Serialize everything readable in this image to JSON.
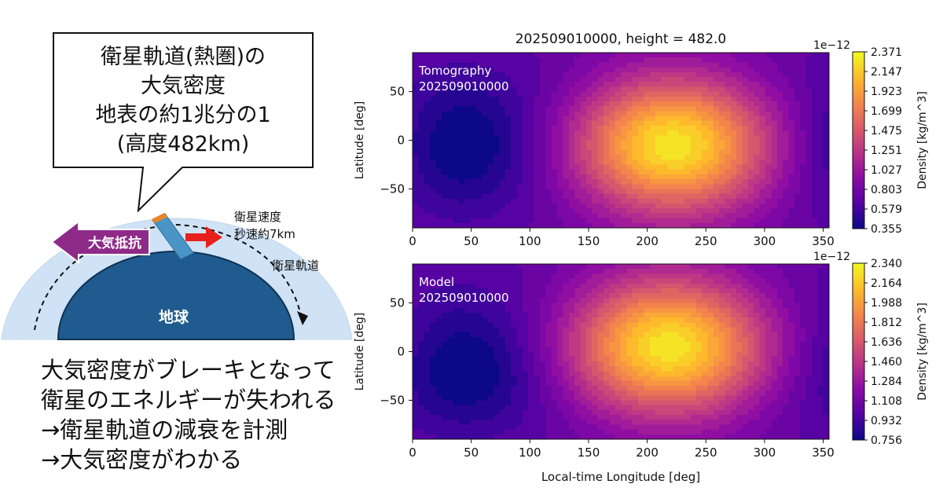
{
  "explainer": {
    "callout_lines": [
      "衛星軌道(熱圏)の",
      "大気密度",
      "地表の約1兆分の1",
      "(高度482km)"
    ],
    "drag_label": "大気抵抗",
    "speed_label_1": "衛星速度",
    "speed_label_2": "秒速約7km",
    "orbit_label": "衛星軌道",
    "earth_label": "地球",
    "body_lines": [
      "大気密度がブレーキとなって",
      "衛星のエネルギーが失われる",
      "→衛星軌道の減衰を計測",
      "→大気密度がわかる"
    ],
    "colors": {
      "atmosphere": "#cfe2f6",
      "earth": "#1f5b8e",
      "drag_arrow": "#8e2a88",
      "velocity_arrow": "#e8201c",
      "satellite": "#4a95c6"
    }
  },
  "figure": {
    "title": "202509010000, height = 482.0",
    "xlabel": "Local-time Longitude [deg]",
    "x_ticks": [
      "0",
      "50",
      "100",
      "150",
      "200",
      "250",
      "300",
      "350"
    ],
    "y_ticks": [
      "50",
      "0",
      "−50"
    ],
    "colormap": "plasma"
  },
  "chart_data": [
    {
      "type": "heatmap",
      "annotation_lines": [
        "Tomography",
        "202509010000"
      ],
      "ylabel": "Latitude [deg]",
      "xlim": [
        0,
        355
      ],
      "ylim": [
        -90,
        90
      ],
      "colorbar_label": "Density [kg/m^3]",
      "colorbar_exponent": "1e−12",
      "colorbar_ticks": [
        "2.371",
        "2.147",
        "1.923",
        "1.699",
        "1.475",
        "1.251",
        "1.027",
        "0.803",
        "0.579",
        "0.355"
      ],
      "range": [
        0.355,
        2.371
      ],
      "peak": {
        "longitude": 222,
        "latitude": -5
      },
      "minimum_region": {
        "longitude": 45,
        "latitude": -5
      }
    },
    {
      "type": "heatmap",
      "annotation_lines": [
        "Model",
        "202509010000"
      ],
      "ylabel": "Latitude [deg]",
      "xlim": [
        0,
        355
      ],
      "ylim": [
        -90,
        90
      ],
      "colorbar_label": "Density [kg/m^3]",
      "colorbar_exponent": "1e−12",
      "colorbar_ticks": [
        "2.340",
        "2.164",
        "1.988",
        "1.812",
        "1.636",
        "1.460",
        "1.284",
        "1.108",
        "0.932",
        "0.756"
      ],
      "range": [
        0.756,
        2.34
      ],
      "peak": {
        "longitude": 218,
        "latitude": 5
      },
      "minimum_region": {
        "longitude": 50,
        "latitude": -20
      }
    }
  ]
}
